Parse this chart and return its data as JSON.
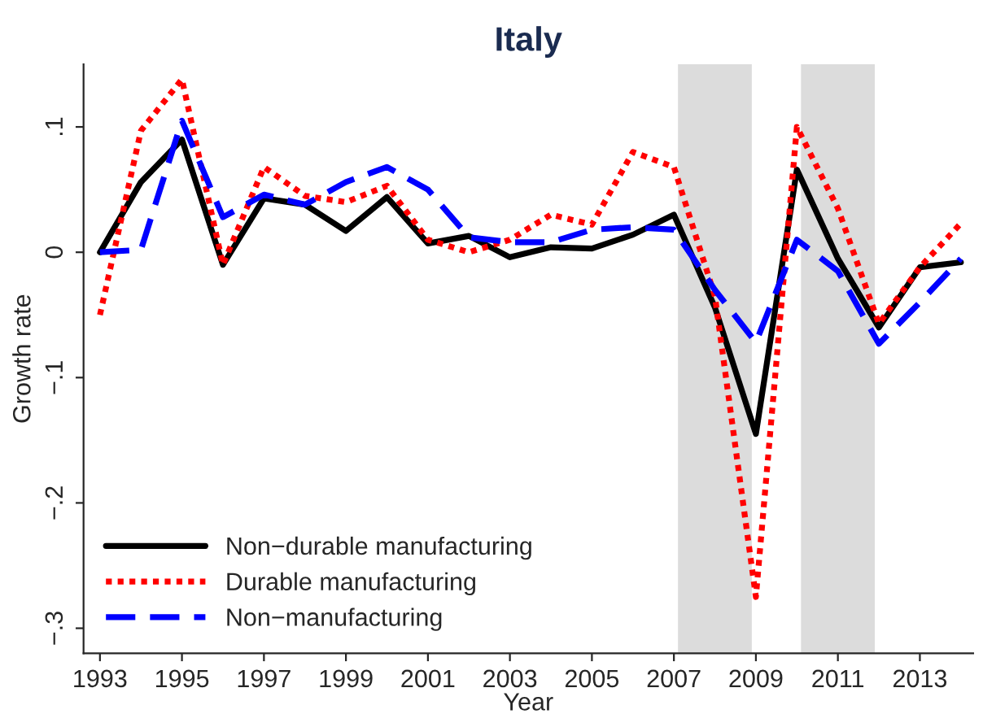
{
  "chart_data": {
    "type": "line",
    "title": "Italy",
    "xlabel": "Year",
    "ylabel": "Growth rate",
    "x": [
      1993,
      1994,
      1995,
      1996,
      1997,
      1998,
      1999,
      2000,
      2001,
      2002,
      2003,
      2004,
      2005,
      2006,
      2007,
      2008,
      2009,
      2010,
      2011,
      2012,
      2013,
      2014
    ],
    "series": [
      {
        "name": "Non−durable manufacturing",
        "color": "#000000",
        "line_style": "solid",
        "values": [
          0,
          0.056,
          0.09,
          -0.01,
          0.043,
          0.038,
          0.017,
          0.044,
          0.007,
          0.013,
          -0.004,
          0.004,
          0.003,
          0.014,
          0.03,
          -0.044,
          -0.145,
          0.066,
          -0.005,
          -0.06,
          -0.012,
          -0.008
        ]
      },
      {
        "name": "Durable manufacturing",
        "color": "#ff0000",
        "line_style": "dotted",
        "values": [
          -0.05,
          0.097,
          0.138,
          -0.01,
          0.068,
          0.045,
          0.04,
          0.053,
          0.01,
          0,
          0.01,
          0.03,
          0.022,
          0.08,
          0.068,
          -0.035,
          -0.275,
          0.1,
          0.035,
          -0.057,
          -0.012,
          0.023
        ]
      },
      {
        "name": "Non−manufacturing",
        "color": "#0000ff",
        "line_style": "dashed",
        "values": [
          0,
          0.002,
          0.105,
          0.028,
          0.046,
          0.038,
          0.056,
          0.068,
          0.05,
          0.012,
          0.008,
          0.008,
          0.018,
          0.02,
          0.018,
          -0.03,
          -0.072,
          0.01,
          -0.015,
          -0.073,
          -0.04,
          -0.005
        ]
      }
    ],
    "bands": [
      {
        "axis": "x",
        "from": 2007.1,
        "to": 2008.9,
        "color": "#dcdcdc"
      },
      {
        "axis": "x",
        "from": 2010.1,
        "to": 2011.9,
        "color": "#dcdcdc"
      }
    ],
    "xlim": [
      1992.6,
      2014.3
    ],
    "xticks": [
      1993,
      1995,
      1997,
      1999,
      2001,
      2003,
      2005,
      2007,
      2009,
      2011,
      2013
    ],
    "ylim": [
      -0.32,
      0.15
    ],
    "yticks": [
      {
        "value": -0.3,
        "label": "−.3"
      },
      {
        "value": -0.2,
        "label": "−.2"
      },
      {
        "value": -0.1,
        "label": "−.1"
      },
      {
        "value": 0,
        "label": "0"
      },
      {
        "value": 0.1,
        "label": ".1"
      }
    ],
    "grid": false,
    "legend": "bottom left"
  }
}
